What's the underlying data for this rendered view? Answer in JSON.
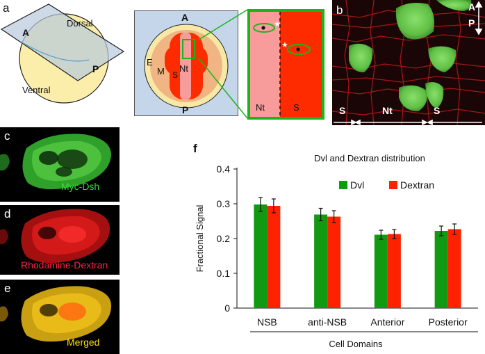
{
  "panels": {
    "a": {
      "letter": "a",
      "labels": {
        "dorsal": "Dorsal",
        "ventral": "Ventral",
        "anterior": "A",
        "posterior": "P"
      },
      "embryo": {
        "top": "A",
        "bottom": "P",
        "e": "E",
        "m": "M",
        "s": "S",
        "nt": "Nt"
      },
      "zoom": {
        "nt": "Nt",
        "s": "S"
      }
    },
    "b": {
      "letter": "b",
      "axis_top": "A",
      "axis_bottom": "P",
      "regions": [
        "S",
        "Nt",
        "S"
      ]
    },
    "c": {
      "letter": "c",
      "label": "Myc-Dsh",
      "label_color": "#33dd33"
    },
    "d": {
      "letter": "d",
      "label": "Rhodamine-Dextran",
      "label_color": "#ff2244"
    },
    "e": {
      "letter": "e",
      "label": "Merged",
      "label_color": "#ffe000"
    },
    "f": {
      "letter": "f"
    }
  },
  "chart_data": {
    "type": "bar",
    "title": "Dvl and Dextran distribution",
    "xlabel": "Cell Domains",
    "ylabel": "Fractional Signal",
    "categories": [
      "NSB",
      "anti-NSB",
      "Anterior",
      "Posterior"
    ],
    "series": [
      {
        "name": "Dvl",
        "color": "#129912",
        "values": [
          0.298,
          0.269,
          0.211,
          0.222
        ],
        "errors": [
          0.02,
          0.018,
          0.013,
          0.014
        ]
      },
      {
        "name": "Dextran",
        "color": "#ff2200",
        "values": [
          0.294,
          0.263,
          0.213,
          0.227
        ],
        "errors": [
          0.02,
          0.017,
          0.013,
          0.015
        ]
      }
    ],
    "ylim": [
      0,
      0.4
    ],
    "yticks": [
      "0",
      "0.1",
      "0.2",
      "0.3",
      "0.4"
    ],
    "legend_position": "top-right",
    "grid": false
  }
}
